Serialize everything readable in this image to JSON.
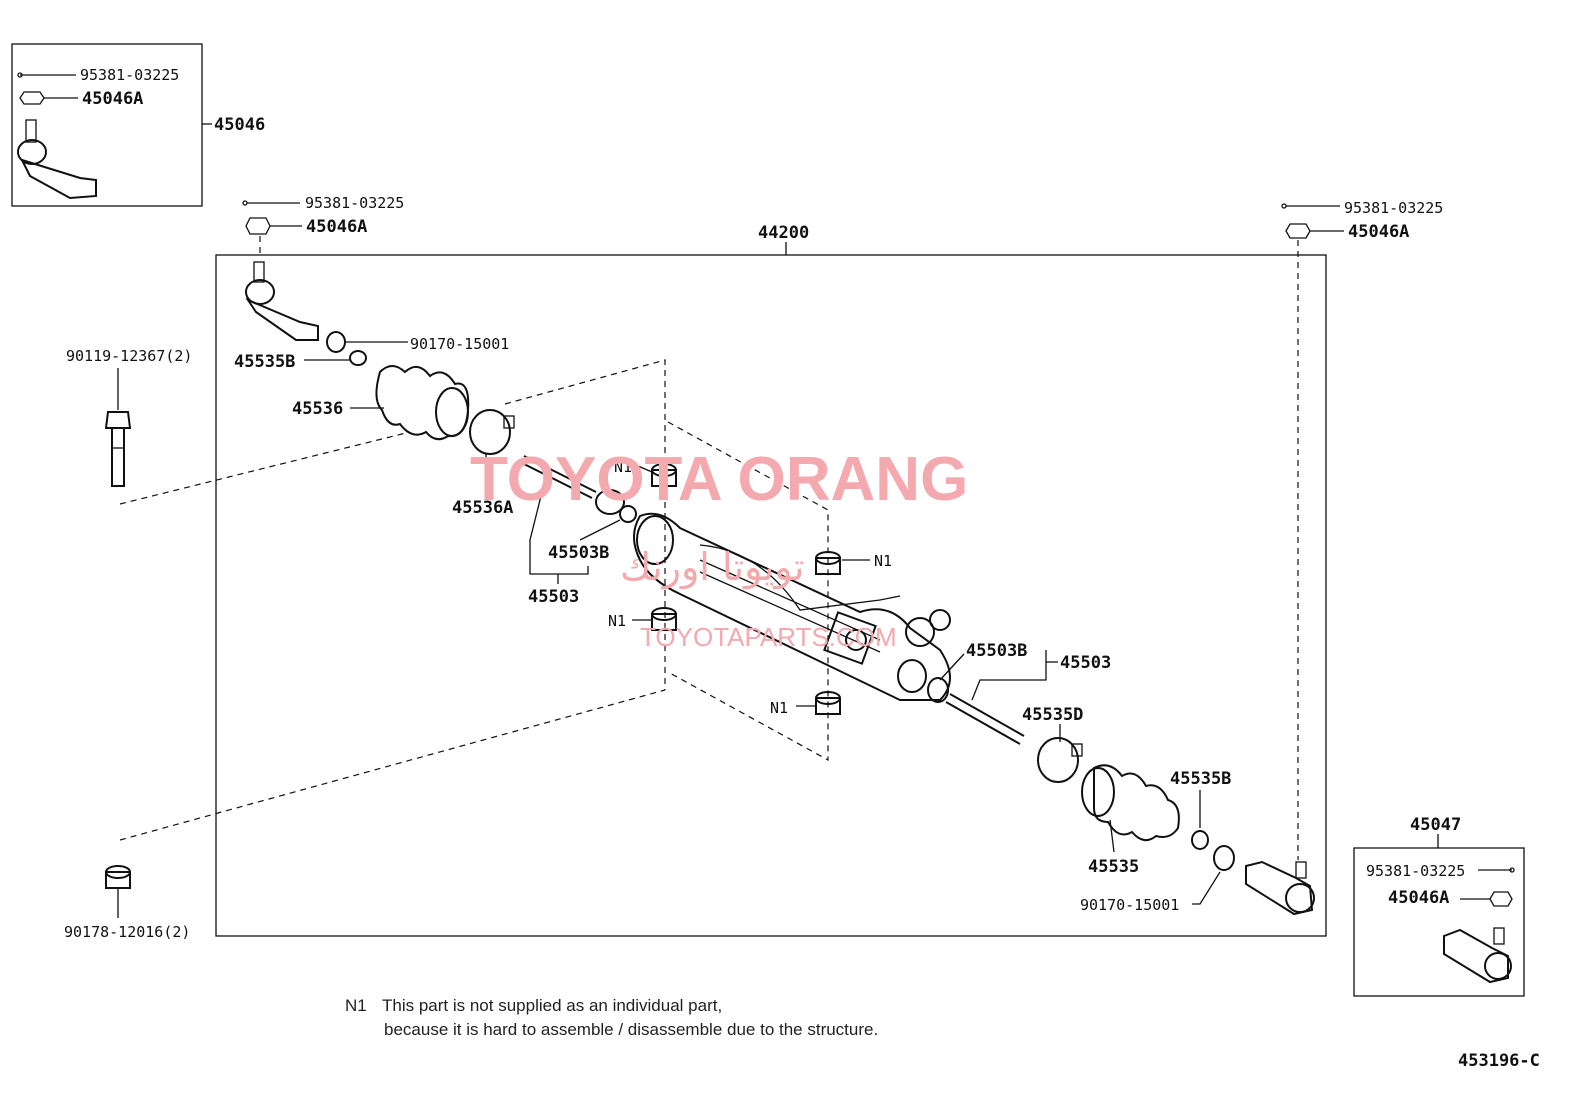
{
  "labels": {
    "kit_45046_title": "45046",
    "kit_45046_pin": "95381-03225",
    "kit_45046_nut": "45046A",
    "left_pin": "95381-03225",
    "left_nut": "45046A",
    "assembly": "44200",
    "right_pin": "95381-03225",
    "right_nut": "45046A",
    "left_clamp_ring": "90170-15001",
    "left_clip": "45535B",
    "left_boot": "45536",
    "left_band": "45536A",
    "left_tie_rod_nut": "45503B",
    "left_tie_rod": "45503",
    "bolt": "90119-12367(2)",
    "grommet": "90178-12016(2)",
    "n1_a": "N1",
    "n1_b": "N1",
    "n1_c": "N1",
    "n1_d": "N1",
    "right_tie_rod_nut": "45503B",
    "right_tie_rod": "45503",
    "right_band": "45535D",
    "right_clip": "45535B",
    "right_boot": "45535",
    "right_clamp_ring": "90170-15001",
    "kit_45047_title": "45047",
    "kit_45047_pin": "95381-03225",
    "kit_45047_nut": "45046A"
  },
  "note": {
    "marker": "N1",
    "line1": "This part is not supplied as an individual part,",
    "line2": "because it is hard to assemble / disassemble due to the structure."
  },
  "diagram_id": "453196-C",
  "watermark": {
    "main": "TOYOTA ORANG",
    "arabic": "تويوتا اورنك",
    "site": "TOYOTAPARTS.COM"
  },
  "colors": {
    "line": "#111111",
    "watermark": "#f4a9ae"
  }
}
